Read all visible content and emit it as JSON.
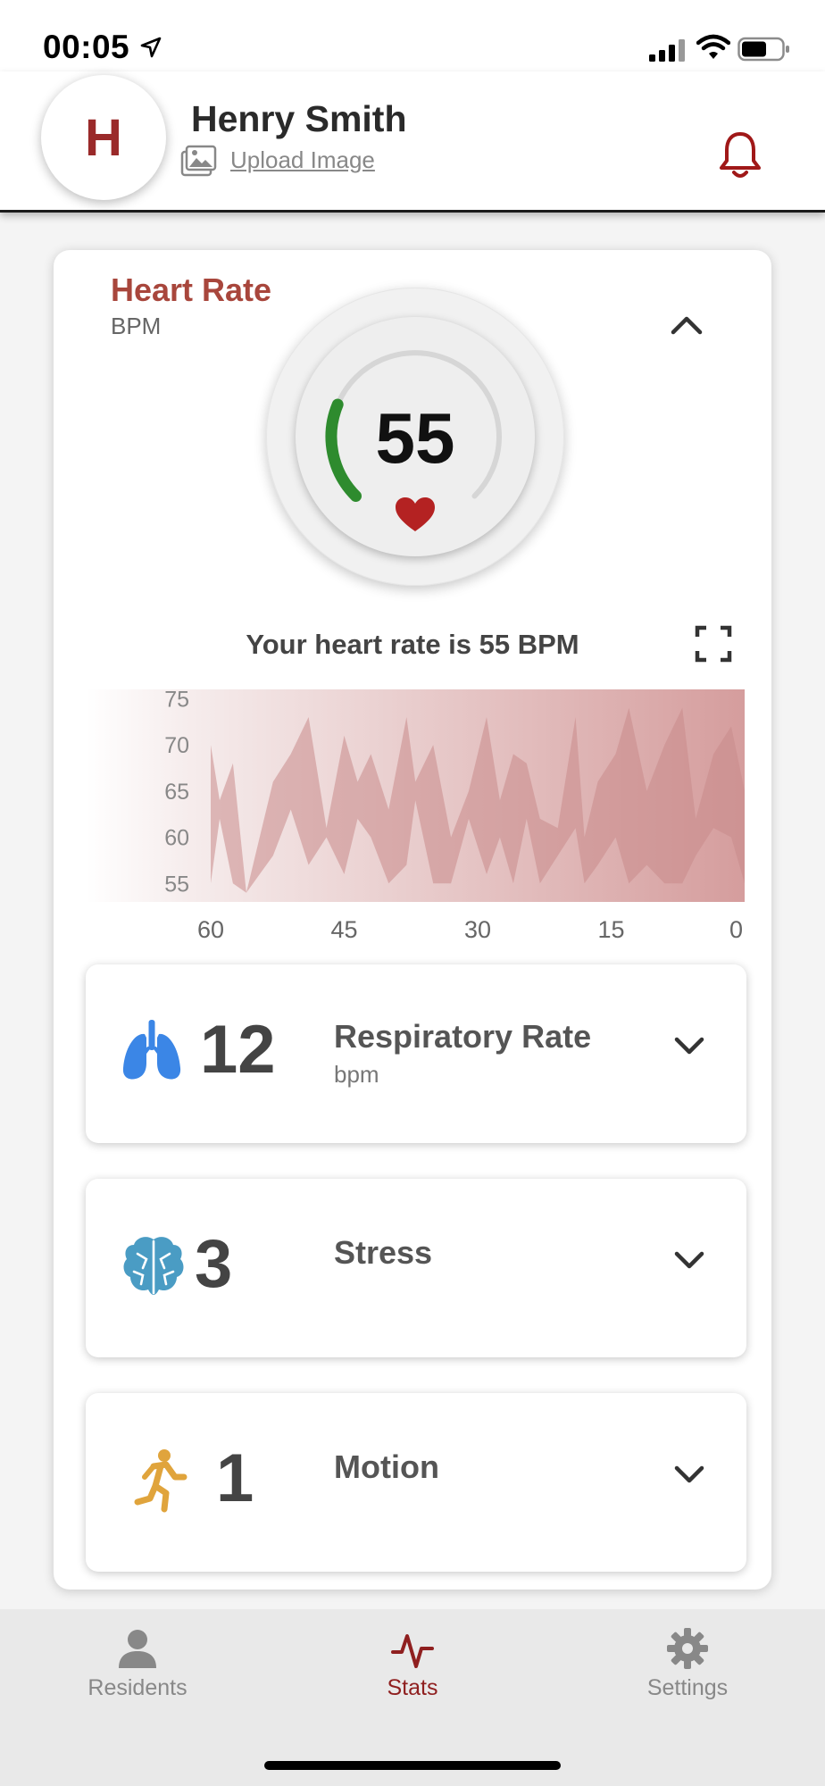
{
  "status_bar": {
    "time": "00:05"
  },
  "header": {
    "avatar_initial": "H",
    "user_name": "Henry Smith",
    "upload_label": "Upload Image"
  },
  "heart_rate": {
    "title": "Heart Rate",
    "unit": "BPM",
    "value": "55",
    "gauge_fraction": 0.25,
    "sentence": "Your heart rate is 55 BPM"
  },
  "chart_data": {
    "type": "area",
    "title": "",
    "xlabel": "",
    "ylabel": "",
    "x_ticks": [
      "60",
      "45",
      "30",
      "15",
      "0"
    ],
    "y_ticks": [
      "75",
      "70",
      "65",
      "60",
      "55"
    ],
    "xlim": [
      60,
      0
    ],
    "ylim": [
      53,
      76
    ],
    "series": [
      {
        "x": [
          60,
          59,
          57.5,
          56,
          54.5,
          53,
          51,
          49,
          47,
          45,
          43.5,
          42,
          40,
          38,
          37,
          35,
          33,
          31,
          29,
          27.5,
          26,
          24.5,
          23,
          21,
          19,
          18,
          16.5,
          14.5,
          13,
          11,
          9,
          7,
          5.5,
          3.5,
          1.5,
          0
        ],
        "upper": [
          70,
          64,
          68,
          54,
          60,
          66,
          69,
          73,
          61,
          71,
          66,
          69,
          63,
          73,
          66,
          70,
          60,
          65,
          73,
          64,
          69,
          68,
          62,
          61,
          73,
          60,
          66,
          69,
          74,
          65,
          70,
          74,
          62,
          69,
          72,
          65
        ],
        "lower": [
          55,
          62,
          55,
          54,
          56,
          58,
          63,
          57,
          60,
          56,
          62,
          60,
          55,
          57,
          64,
          55,
          55,
          62,
          56,
          60,
          55,
          62,
          55,
          58,
          61,
          55,
          57,
          60,
          55,
          57,
          55,
          55,
          58,
          61,
          60,
          55
        ]
      }
    ],
    "fill_color": "#c98a8a"
  },
  "stats": [
    {
      "value": "12",
      "label": "Respiratory Rate",
      "unit": "bpm",
      "icon": "lungs-icon",
      "color": "#3b86e6"
    },
    {
      "value": "3",
      "label": "Stress",
      "unit": "",
      "icon": "brain-icon",
      "color": "#4a9cc4"
    },
    {
      "value": "1",
      "label": "Motion",
      "unit": "",
      "icon": "running-person-icon",
      "color": "#e0a43c"
    }
  ],
  "tabs": [
    {
      "label": "Residents",
      "icon": "person-icon",
      "active": false
    },
    {
      "label": "Stats",
      "icon": "pulse-icon",
      "active": true
    },
    {
      "label": "Settings",
      "icon": "gear-icon",
      "active": false
    }
  ],
  "colors": {
    "accent": "#a8463c",
    "gauge_green": "#2e8b2e",
    "heart_red": "#b42222",
    "active_tab": "#8f1f1f"
  }
}
